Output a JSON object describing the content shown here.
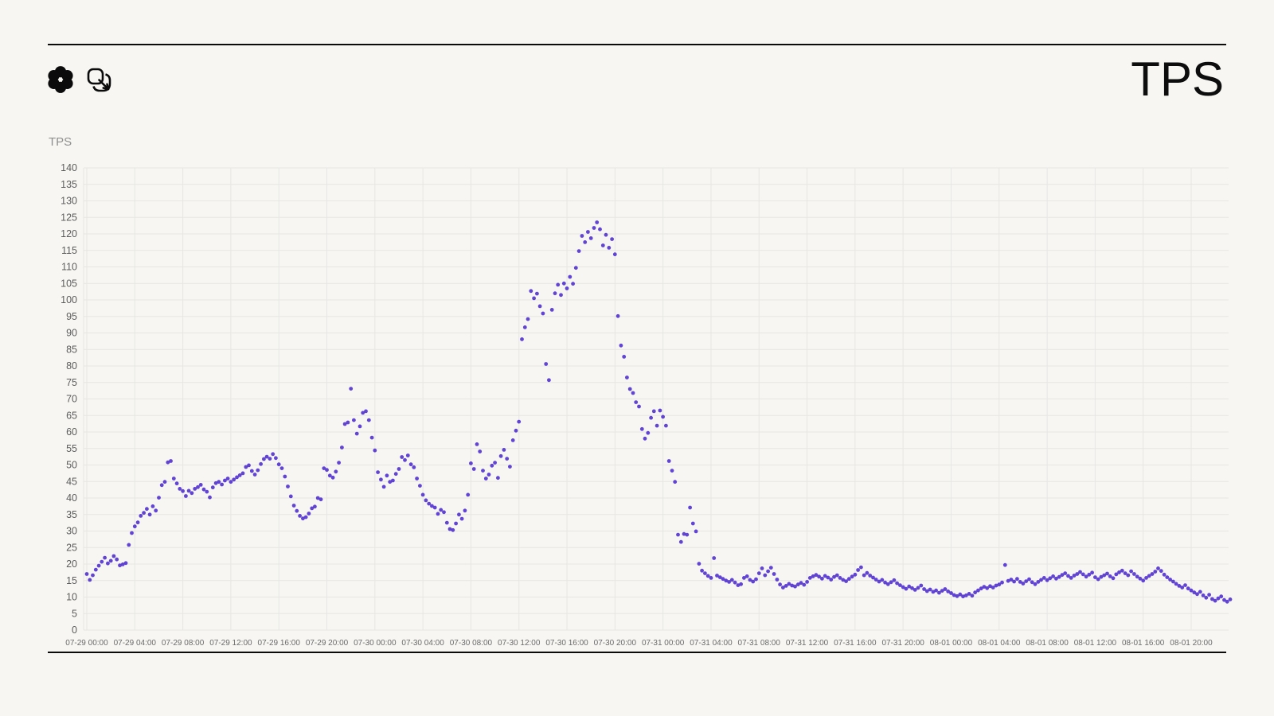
{
  "header": {
    "title": "TPS",
    "icons": [
      {
        "name": "flower-icon"
      },
      {
        "name": "copy-arrow-icon"
      }
    ]
  },
  "chart": {
    "axis_label": "TPS"
  },
  "chart_data": {
    "type": "scatter",
    "title": "TPS",
    "xlabel": "",
    "ylabel": "TPS",
    "ylim": [
      0,
      140
    ],
    "y_ticks": [
      0,
      5,
      10,
      15,
      20,
      25,
      30,
      35,
      40,
      45,
      50,
      55,
      60,
      65,
      70,
      75,
      80,
      85,
      90,
      95,
      100,
      105,
      110,
      115,
      120,
      125,
      130,
      135,
      140
    ],
    "x_ticks": [
      "07-29 00:00",
      "07-29 04:00",
      "07-29 08:00",
      "07-29 12:00",
      "07-29 16:00",
      "07-29 20:00",
      "07-30 00:00",
      "07-30 04:00",
      "07-30 08:00",
      "07-30 12:00",
      "07-30 16:00",
      "07-30 20:00",
      "07-31 00:00",
      "07-31 04:00",
      "07-31 08:00",
      "07-31 12:00",
      "07-31 16:00",
      "07-31 20:00",
      "08-01 00:00",
      "08-01 04:00",
      "08-01 08:00",
      "08-01 12:00",
      "08-01 16:00",
      "08-01 20:00"
    ],
    "x_tick_interval_hours": 4,
    "grid": true,
    "legend": "none",
    "point_color": "#5434d0",
    "series": [
      {
        "name": "TPS",
        "start_hour": 0,
        "interval_hours": 0.25,
        "values": [
          17.0,
          15.2,
          16.6,
          18.3,
          19.5,
          20.7,
          21.9,
          20.2,
          21.0,
          22.4,
          21.4,
          19.6,
          19.9,
          20.3,
          25.8,
          29.4,
          31.4,
          32.6,
          34.6,
          35.5,
          36.7,
          35.0,
          37.5,
          36.2,
          40.1,
          43.9,
          44.9,
          50.8,
          51.2,
          45.9,
          44.4,
          42.8,
          42.1,
          40.6,
          42.2,
          41.5,
          42.8,
          43.3,
          44.0,
          42.6,
          41.9,
          40.2,
          43.2,
          44.5,
          44.9,
          44.1,
          45.3,
          45.9,
          44.9,
          45.6,
          46.3,
          46.9,
          47.5,
          49.4,
          49.9,
          48.2,
          47.1,
          48.4,
          50.3,
          51.8,
          52.5,
          51.9,
          53.3,
          52.1,
          50.2,
          49.0,
          46.5,
          43.5,
          40.5,
          37.7,
          36.1,
          34.6,
          33.8,
          34.2,
          35.3,
          36.9,
          37.4,
          40.0,
          39.6,
          49.0,
          48.5,
          46.8,
          46.2,
          48.0,
          50.7,
          55.3,
          62.4,
          62.9,
          73.1,
          63.6,
          59.5,
          61.7,
          65.8,
          66.3,
          63.6,
          58.3,
          54.4,
          47.8,
          45.6,
          43.4,
          46.8,
          44.9,
          45.3,
          47.3,
          48.8,
          52.4,
          51.5,
          52.9,
          50.2,
          49.3,
          45.9,
          43.7,
          41.0,
          39.3,
          38.3,
          37.6,
          37.1,
          35.2,
          36.4,
          35.7,
          32.5,
          30.6,
          30.3,
          32.3,
          35.0,
          33.7,
          36.2,
          41.0,
          50.5,
          48.8,
          56.3,
          54.1,
          48.3,
          45.9,
          47.1,
          49.8,
          50.7,
          46.1,
          52.7,
          54.6,
          51.9,
          49.5,
          57.5,
          60.4,
          63.1,
          88.1,
          91.7,
          94.2,
          102.7,
          100.5,
          101.9,
          98.1,
          95.9,
          80.6,
          75.7,
          97.0,
          102.0,
          104.6,
          101.5,
          105.0,
          103.5,
          107.0,
          104.9,
          109.7,
          114.8,
          119.4,
          117.5,
          120.6,
          118.7,
          121.8,
          123.5,
          121.4,
          116.5,
          119.7,
          115.8,
          118.4,
          113.8,
          95.1,
          86.2,
          82.8,
          76.5,
          73.0,
          71.8,
          69.0,
          67.7,
          60.9,
          58.0,
          59.7,
          64.3,
          66.3,
          61.9,
          66.5,
          64.6,
          61.9,
          51.2,
          48.3,
          44.9,
          28.9,
          26.7,
          29.1,
          28.9,
          37.1,
          32.3,
          29.9,
          20.1,
          18.0,
          17.2,
          16.4,
          15.8,
          21.8,
          16.5,
          16.0,
          15.5,
          15.0,
          14.6,
          15.2,
          14.4,
          13.6,
          13.9,
          15.8,
          16.3,
          15.2,
          14.7,
          15.4,
          17.2,
          18.7,
          16.6,
          17.8,
          18.9,
          17.0,
          15.3,
          13.8,
          12.9,
          13.4,
          14.0,
          13.5,
          13.2,
          13.8,
          14.3,
          13.7,
          14.6,
          15.8,
          16.3,
          16.7,
          16.2,
          15.6,
          16.4,
          15.9,
          15.3,
          16.1,
          16.6,
          15.8,
          15.2,
          14.8,
          15.5,
          16.2,
          16.8,
          18.2,
          19.0,
          16.6,
          17.3,
          16.5,
          15.9,
          15.3,
          14.7,
          15.2,
          14.4,
          13.9,
          14.5,
          15.1,
          14.2,
          13.6,
          13.0,
          12.5,
          13.2,
          12.7,
          12.2,
          12.8,
          13.5,
          12.4,
          11.8,
          12.3,
          11.6,
          12.0,
          11.3,
          11.9,
          12.4,
          11.7,
          11.2,
          10.6,
          10.3,
          10.8,
          10.2,
          10.5,
          11.0,
          10.4,
          11.4,
          12.0,
          12.6,
          13.1,
          12.7,
          13.3,
          12.9,
          13.5,
          13.8,
          14.4,
          19.7,
          14.9,
          15.3,
          14.7,
          15.5,
          14.6,
          14.1,
          14.8,
          15.4,
          14.5,
          13.9,
          14.6,
          15.2,
          15.8,
          15.1,
          15.7,
          16.3,
          15.6,
          16.1,
          16.7,
          17.2,
          16.4,
          15.8,
          16.5,
          17.0,
          17.6,
          16.9,
          16.2,
          16.8,
          17.4,
          16.0,
          15.4,
          16.1,
          16.6,
          17.1,
          16.3,
          15.7,
          16.9,
          17.5,
          18.0,
          17.2,
          16.6,
          17.8,
          17.0,
          16.2,
          15.6,
          15.0,
          15.8,
          16.4,
          17.0,
          17.7,
          18.7,
          17.9,
          16.8,
          16.0,
          15.3,
          14.7,
          14.0,
          13.4,
          12.9,
          13.6,
          12.6,
          12.0,
          11.4,
          10.9,
          11.6,
          10.5,
          9.8,
          10.7,
          9.4,
          8.9,
          9.6,
          10.2,
          9.1,
          8.6,
          9.3
        ]
      }
    ]
  }
}
